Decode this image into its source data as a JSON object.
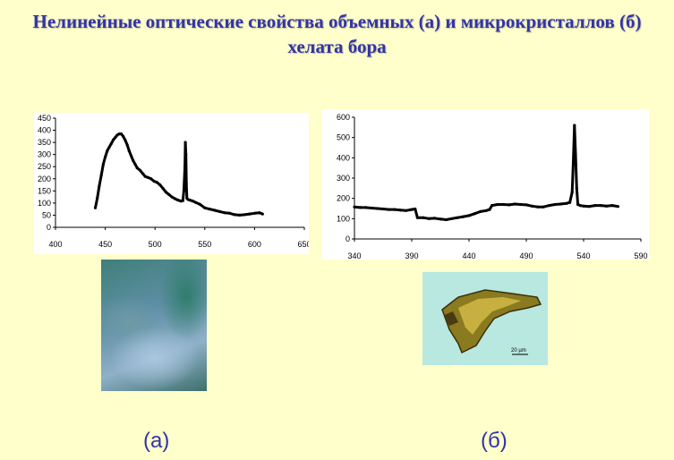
{
  "title_line1": "Нелинейные оптические свойства объемных (а) и микрокристаллов (б)",
  "title_line2": "хелата бора",
  "label_a": "(а)",
  "label_b": "(б)",
  "scale_bar_text": "20 µm",
  "colors": {
    "title": "#3333aa",
    "background": "#ffffcc",
    "series": "#000000"
  },
  "chart_data": [
    {
      "type": "line",
      "title": "",
      "xlabel": "",
      "ylabel": "",
      "xlim": [
        400,
        650
      ],
      "ylim": [
        0,
        450
      ],
      "xticks": [
        400,
        450,
        500,
        550,
        600,
        650
      ],
      "yticks": [
        0,
        50,
        100,
        150,
        200,
        250,
        300,
        350,
        400,
        450
      ],
      "grid": false,
      "legend": "none",
      "series": [
        {
          "x": [
            440,
            442,
            444,
            446,
            448,
            450,
            452,
            454,
            456,
            458,
            460,
            462,
            464,
            466,
            468,
            470,
            472,
            474,
            476,
            478,
            480,
            482,
            485,
            488,
            490,
            493,
            496,
            499,
            502,
            505,
            508,
            511,
            514,
            517,
            520,
            523,
            526,
            528,
            529,
            530,
            530.5,
            531,
            531.5,
            532,
            533,
            535,
            538,
            541,
            545,
            550,
            555,
            560,
            565,
            570,
            575,
            580,
            585,
            590,
            595,
            600,
            605,
            608
          ],
          "y": [
            80,
            120,
            170,
            215,
            260,
            290,
            315,
            330,
            345,
            360,
            370,
            380,
            385,
            385,
            375,
            360,
            340,
            315,
            295,
            275,
            260,
            245,
            235,
            220,
            210,
            205,
            200,
            190,
            185,
            175,
            160,
            145,
            135,
            125,
            118,
            112,
            108,
            110,
            150,
            250,
            350,
            300,
            180,
            120,
            115,
            112,
            108,
            102,
            95,
            80,
            75,
            70,
            65,
            60,
            58,
            52,
            50,
            52,
            55,
            58,
            60,
            55
          ]
        }
      ]
    },
    {
      "type": "line",
      "title": "",
      "xlabel": "",
      "ylabel": "",
      "xlim": [
        340,
        590
      ],
      "ylim": [
        0,
        600
      ],
      "xticks": [
        340,
        390,
        440,
        490,
        540,
        590
      ],
      "yticks": [
        0,
        100,
        200,
        300,
        400,
        500,
        600
      ],
      "grid": false,
      "legend": "none",
      "series": [
        {
          "x": [
            340,
            345,
            350,
            355,
            360,
            365,
            370,
            375,
            380,
            385,
            390,
            393,
            395,
            400,
            405,
            410,
            415,
            420,
            425,
            430,
            435,
            440,
            445,
            450,
            455,
            458,
            460,
            465,
            470,
            475,
            480,
            485,
            490,
            495,
            500,
            505,
            510,
            515,
            520,
            525,
            528,
            530,
            531,
            532,
            533,
            534,
            535,
            537,
            540,
            545,
            550,
            555,
            560,
            565,
            570
          ],
          "y": [
            158,
            155,
            155,
            152,
            150,
            148,
            145,
            145,
            142,
            140,
            145,
            148,
            105,
            105,
            100,
            102,
            98,
            95,
            100,
            105,
            110,
            115,
            125,
            135,
            140,
            145,
            165,
            170,
            170,
            168,
            172,
            170,
            168,
            162,
            158,
            158,
            165,
            170,
            172,
            175,
            180,
            230,
            380,
            560,
            420,
            250,
            170,
            165,
            162,
            160,
            165,
            165,
            162,
            165,
            160
          ]
        }
      ]
    }
  ]
}
